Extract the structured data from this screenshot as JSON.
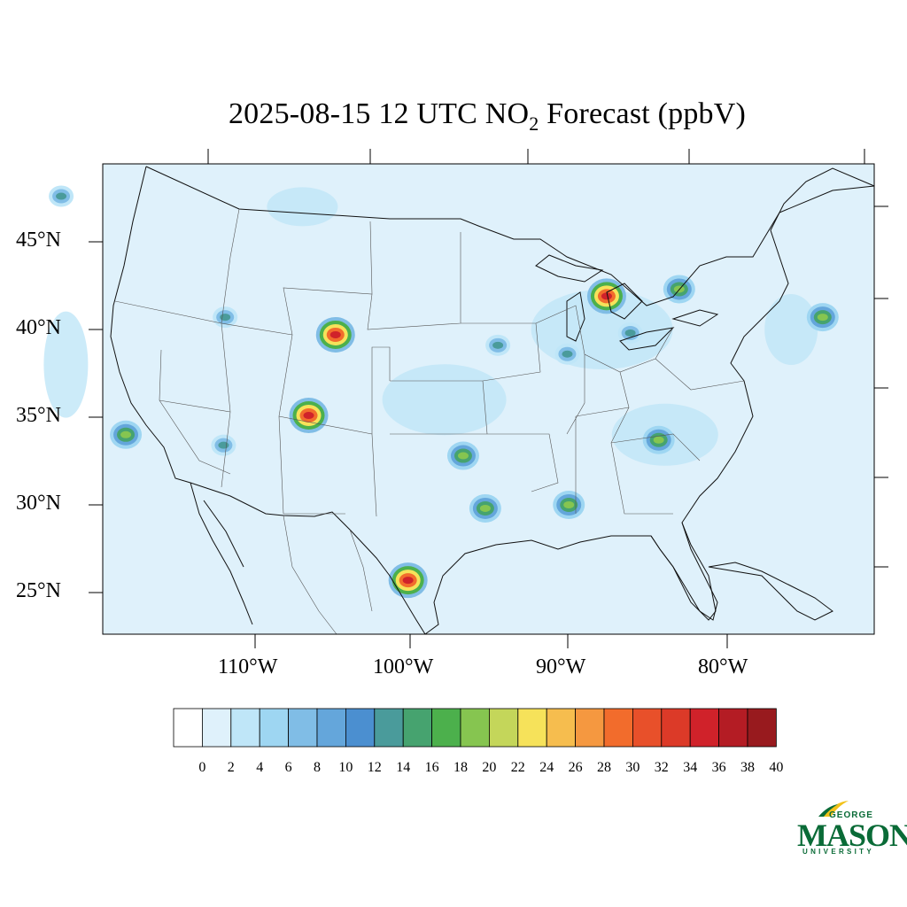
{
  "title": {
    "main": "2025-08-15 12 UTC NO",
    "sub": "2",
    "rest": " Forecast (ppbV)"
  },
  "lat_labels": [
    "45°N",
    "40°N",
    "35°N",
    "30°N",
    "25°N"
  ],
  "lon_labels": [
    "110°W",
    "100°W",
    "90°W",
    "80°W"
  ],
  "colorbar": {
    "labels": [
      "0",
      "2",
      "4",
      "6",
      "8",
      "10",
      "12",
      "14",
      "16",
      "18",
      "20",
      "22",
      "24",
      "26",
      "28",
      "30",
      "32",
      "34",
      "36",
      "38",
      "40"
    ],
    "colors": [
      "#ffffff",
      "#dff1fb",
      "#bfe6f8",
      "#9ed6f2",
      "#80bde6",
      "#64a6db",
      "#4b8fd0",
      "#4a9b9b",
      "#46a36f",
      "#4cb04c",
      "#86c550",
      "#c4d65a",
      "#f6e25a",
      "#f6bd4e",
      "#f59840",
      "#f26c2c",
      "#e8502a",
      "#dc3a28",
      "#d0222a",
      "#b41c24",
      "#981a1e"
    ]
  },
  "map": {
    "background": "#dff1fb",
    "hotspots": [
      {
        "name": "chicago",
        "lon": -87.7,
        "lat": 41.9,
        "level": "high"
      },
      {
        "name": "denver",
        "lon": -104.9,
        "lat": 39.7,
        "level": "high"
      },
      {
        "name": "albuquerque",
        "lon": -106.6,
        "lat": 35.1,
        "level": "high"
      },
      {
        "name": "monterrey",
        "lon": -100.3,
        "lat": 25.7,
        "level": "high"
      },
      {
        "name": "houston",
        "lon": -95.4,
        "lat": 29.8,
        "level": "mid"
      },
      {
        "name": "los-angeles",
        "lon": -118.2,
        "lat": 34.0,
        "level": "mid"
      },
      {
        "name": "detroit",
        "lon": -83.1,
        "lat": 42.3,
        "level": "mid"
      },
      {
        "name": "atlanta",
        "lon": -84.4,
        "lat": 33.7,
        "level": "mid"
      },
      {
        "name": "new-orleans",
        "lon": -90.1,
        "lat": 30.0,
        "level": "mid"
      },
      {
        "name": "dallas",
        "lon": -96.8,
        "lat": 32.8,
        "level": "mid"
      },
      {
        "name": "st-louis",
        "lon": -90.2,
        "lat": 38.6,
        "level": "low"
      },
      {
        "name": "new-york",
        "lon": -74.0,
        "lat": 40.7,
        "level": "mid"
      },
      {
        "name": "salt-lake",
        "lon": -111.9,
        "lat": 40.7,
        "level": "low"
      },
      {
        "name": "phoenix",
        "lon": -112.0,
        "lat": 33.4,
        "level": "low"
      },
      {
        "name": "kansas-city",
        "lon": -94.6,
        "lat": 39.1,
        "level": "low"
      },
      {
        "name": "indianapolis",
        "lon": -86.2,
        "lat": 39.8,
        "level": "low"
      },
      {
        "name": "seattle",
        "lon": -122.3,
        "lat": 47.6,
        "level": "low"
      }
    ]
  },
  "logo": {
    "line1": "GEORGE",
    "line2": "MASON",
    "line3": "UNIVERSITY"
  }
}
